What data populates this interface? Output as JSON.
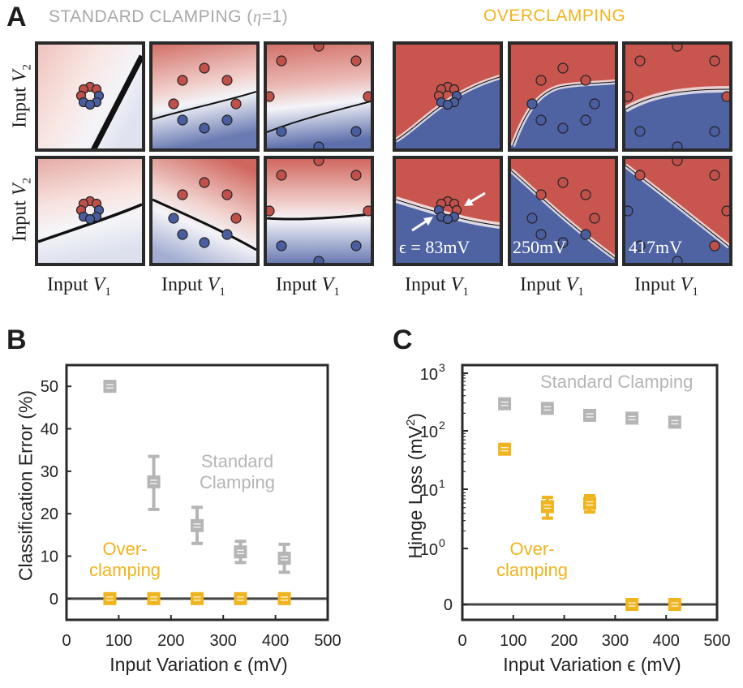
{
  "panel_a": {
    "label": "A",
    "left_title_prefix": "STANDARD CLAMPING (",
    "left_title_eta": "η",
    "left_title_suffix": "=1)",
    "right_title": "OVERCLAMPING",
    "ylabel_text": "Input ",
    "ylabel_var": "V",
    "ylabel_sub": "2",
    "xlabel_text": "Input ",
    "xlabel_var": "V",
    "xlabel_sub": "1",
    "eps_labels": [
      "ϵ = 83mV",
      "250mV",
      "417mV"
    ],
    "colors": {
      "red": "#c8554e",
      "blue": "#4f63a3",
      "light_red": "#f3d6d3",
      "light_blue": "#d9deee",
      "frame": "#2a2a2a"
    }
  },
  "chart_data": [
    {
      "type": "scatter",
      "panel_label": "B",
      "title": "",
      "xlabel": "Input Variation ϵ (mV)",
      "ylabel": "Classification Error (%)",
      "xlim": [
        0,
        500
      ],
      "ylim": [
        -5,
        55
      ],
      "xticks": [
        "0",
        "100",
        "200",
        "300",
        "400",
        "500"
      ],
      "yticks": [
        "0",
        "10",
        "20",
        "30",
        "40",
        "50"
      ],
      "series": [
        {
          "name": "Standard Clamping",
          "label_line1": "Standard",
          "label_line2": "Clamping",
          "color": "#b5b5b5",
          "x": [
            83,
            167,
            250,
            333,
            417
          ],
          "y": [
            50,
            27.5,
            17.2,
            11,
            9.5
          ],
          "err_low": [
            50,
            21,
            13,
            8.5,
            6.2
          ],
          "err_high": [
            50,
            33.5,
            21.5,
            13.5,
            12.8
          ]
        },
        {
          "name": "Over-clamping",
          "label_line1": "Over-",
          "label_line2": "clamping",
          "color": "#f0b41e",
          "x": [
            83,
            167,
            250,
            333,
            417
          ],
          "y": [
            0,
            0,
            0,
            0,
            0
          ],
          "err_low": [
            0,
            0,
            0,
            0,
            0
          ],
          "err_high": [
            0,
            0,
            0,
            0,
            0
          ]
        }
      ]
    },
    {
      "type": "scatter",
      "panel_label": "C",
      "title": "",
      "xlabel": "Input Variation ϵ (mV)",
      "ylabel": "Hinge Loss (mV²)",
      "yscale": "symlog",
      "xlim": [
        0,
        500
      ],
      "xticks": [
        "0",
        "100",
        "200",
        "300",
        "400",
        "500"
      ],
      "ytick_values": [
        "0",
        "10^0",
        "10^1",
        "10^2",
        "10^3"
      ],
      "series": [
        {
          "name": "Standard Clamping",
          "color": "#b5b5b5",
          "x": [
            83,
            167,
            250,
            333,
            417
          ],
          "y": [
            300,
            250,
            190,
            170,
            145
          ],
          "err_low": [
            300,
            250,
            190,
            170,
            145
          ],
          "err_high": [
            300,
            250,
            190,
            170,
            145
          ]
        },
        {
          "name": "Over-clamping",
          "label_line1": "Over-",
          "label_line2": "clamping",
          "color": "#f0b41e",
          "x": [
            83,
            167,
            250,
            333,
            417
          ],
          "y": [
            50,
            5.2,
            5.9,
            0,
            0
          ],
          "err_low": [
            50,
            3.3,
            4.2,
            0,
            0
          ],
          "err_high": [
            50,
            7.5,
            8,
            0,
            0
          ]
        }
      ]
    }
  ]
}
